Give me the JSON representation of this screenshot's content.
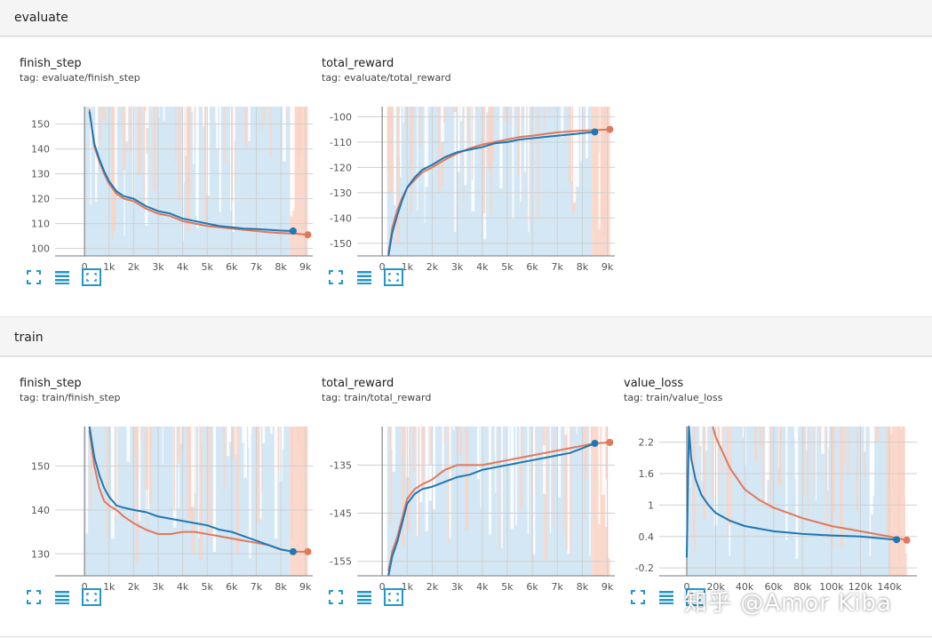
{
  "colors": {
    "blue": "#1f77b4",
    "orange": "#e1785a",
    "blue_band": "#c5dff0",
    "orange_band": "#f9d4c6",
    "grid": "#d0d0d0",
    "tool": "#2196c9"
  },
  "sections": [
    {
      "name": "evaluate"
    },
    {
      "name": "train"
    }
  ],
  "tools": {
    "fit_icon": "fit-domain-icon",
    "data_icon": "data-table-icon",
    "expand_icon": "expand-icon"
  },
  "watermark": "知乎 @Amor Kiba",
  "chart_data": [
    {
      "type": "line",
      "title": "finish_step",
      "tag": "tag: evaluate/finish_step",
      "xlim": [
        -1200,
        9300
      ],
      "ylim": [
        97,
        157
      ],
      "xticks": [
        0,
        1000,
        2000,
        3000,
        4000,
        5000,
        6000,
        7000,
        8000,
        9000
      ],
      "xtick_labels": [
        "0",
        "1k",
        "2k",
        "3k",
        "4k",
        "5k",
        "6k",
        "7k",
        "8k",
        "9k"
      ],
      "yticks": [
        100,
        110,
        120,
        130,
        140,
        150
      ],
      "ytick_labels": [
        "100",
        "110",
        "120",
        "130",
        "140",
        "150"
      ],
      "series": [
        {
          "name": "blue",
          "color": "#1f77b4",
          "x": [
            200,
            400,
            600,
            800,
            1000,
            1300,
            1600,
            2000,
            2500,
            3000,
            3500,
            4000,
            4500,
            5000,
            5500,
            6000,
            6500,
            7000,
            7500,
            8000,
            8500
          ],
          "values": [
            155,
            142,
            136,
            131,
            127,
            123,
            121,
            120,
            117,
            115,
            114,
            112,
            111,
            110,
            109,
            108.5,
            108,
            107.8,
            107.5,
            107.2,
            107
          ]
        },
        {
          "name": "orange",
          "color": "#e1785a",
          "x": [
            200,
            400,
            600,
            800,
            1000,
            1300,
            1600,
            2000,
            2500,
            3000,
            3500,
            4000,
            4500,
            5000,
            5500,
            6000,
            6500,
            7000,
            7500,
            8000,
            8500,
            9100
          ],
          "values": [
            156,
            141,
            135,
            130,
            126,
            122,
            120,
            119,
            116,
            114,
            113,
            111,
            110,
            109,
            108.5,
            108,
            107.5,
            107,
            106.5,
            106.2,
            106,
            105.5
          ]
        }
      ],
      "band_x": [
        0,
        9100
      ]
    },
    {
      "type": "line",
      "title": "total_reward",
      "tag": "tag: evaluate/total_reward",
      "xlim": [
        -1000,
        9300
      ],
      "ylim": [
        -155,
        -96
      ],
      "xticks": [
        0,
        1000,
        2000,
        3000,
        4000,
        5000,
        6000,
        7000,
        8000,
        9000
      ],
      "xtick_labels": [
        "0",
        "1k",
        "2k",
        "3k",
        "4k",
        "5k",
        "6k",
        "7k",
        "8k",
        "9k"
      ],
      "yticks": [
        -150,
        -140,
        -130,
        -120,
        -110,
        -100
      ],
      "ytick_labels": [
        "-150",
        "-140",
        "-130",
        "-120",
        "-110",
        "-100"
      ],
      "series": [
        {
          "name": "blue",
          "color": "#1f77b4",
          "x": [
            250,
            400,
            600,
            800,
            1000,
            1300,
            1600,
            2000,
            2500,
            3000,
            3500,
            4000,
            4500,
            5000,
            5500,
            6000,
            6500,
            7000,
            7500,
            8000,
            8500
          ],
          "values": [
            -155,
            -146,
            -139,
            -133,
            -128,
            -124,
            -121,
            -119,
            -116,
            -114,
            -113,
            -112,
            -110.5,
            -110,
            -109,
            -108.5,
            -108,
            -107.5,
            -107,
            -106.5,
            -106
          ]
        },
        {
          "name": "orange",
          "color": "#e1785a",
          "x": [
            250,
            400,
            600,
            800,
            1000,
            1300,
            1600,
            2000,
            2500,
            3000,
            3500,
            4000,
            4500,
            5000,
            5500,
            6000,
            6500,
            7000,
            7500,
            8000,
            8500,
            9100
          ],
          "values": [
            -154,
            -144,
            -137,
            -132,
            -128,
            -125,
            -122,
            -120,
            -117,
            -114.5,
            -112.5,
            -111,
            -110,
            -109,
            -108,
            -107.5,
            -106.8,
            -106.2,
            -105.8,
            -105.5,
            -105.3,
            -105
          ]
        }
      ],
      "band_x": [
        200,
        9100
      ]
    },
    {
      "type": "line",
      "title": "finish_step",
      "tag": "tag: train/finish_step",
      "xlim": [
        -1200,
        9300
      ],
      "ylim": [
        125,
        159
      ],
      "xticks": [
        0,
        1000,
        2000,
        3000,
        4000,
        5000,
        6000,
        7000,
        8000,
        9000
      ],
      "xtick_labels": [
        "0",
        "1k",
        "2k",
        "3k",
        "4k",
        "5k",
        "6k",
        "7k",
        "8k",
        "9k"
      ],
      "yticks": [
        130,
        140,
        150
      ],
      "ytick_labels": [
        "130",
        "140",
        "150"
      ],
      "series": [
        {
          "name": "blue",
          "color": "#1f77b4",
          "x": [
            200,
            400,
            600,
            800,
            1000,
            1300,
            1600,
            2000,
            2500,
            3000,
            3500,
            4000,
            4500,
            5000,
            5500,
            6000,
            6500,
            7000,
            7500,
            8000,
            8500
          ],
          "values": [
            159,
            152,
            148,
            145,
            143,
            141,
            140.5,
            140,
            139.5,
            138.5,
            138,
            137.5,
            137,
            136.5,
            135.5,
            135,
            134,
            133,
            132,
            131,
            130.5
          ]
        },
        {
          "name": "orange",
          "color": "#e1785a",
          "x": [
            200,
            400,
            600,
            800,
            1000,
            1300,
            1600,
            2000,
            2500,
            3000,
            3500,
            4000,
            4500,
            5000,
            5500,
            6000,
            6500,
            7000,
            7500,
            8000,
            8500,
            9100
          ],
          "values": [
            158,
            150,
            145,
            142,
            141,
            140,
            138.5,
            137,
            135.5,
            134.5,
            134.5,
            135,
            135,
            134.5,
            134,
            133.5,
            133,
            132.5,
            132,
            131,
            130.5,
            130.5
          ]
        }
      ],
      "band_x": [
        0,
        9100
      ]
    },
    {
      "type": "line",
      "title": "total_reward",
      "tag": "tag: train/total_reward",
      "xlim": [
        -1000,
        9300
      ],
      "ylim": [
        -158,
        -127
      ],
      "xticks": [
        0,
        1000,
        2000,
        3000,
        4000,
        5000,
        6000,
        7000,
        8000,
        9000
      ],
      "xtick_labels": [
        "0",
        "1k",
        "2k",
        "3k",
        "4k",
        "5k",
        "6k",
        "7k",
        "8k",
        "9k"
      ],
      "yticks": [
        -155,
        -145,
        -135
      ],
      "ytick_labels": [
        "-155",
        "-145",
        "-135"
      ],
      "series": [
        {
          "name": "blue",
          "color": "#1f77b4",
          "x": [
            250,
            400,
            600,
            800,
            1000,
            1300,
            1600,
            2000,
            2500,
            3000,
            3500,
            4000,
            4500,
            5000,
            5500,
            6000,
            6500,
            7000,
            7500,
            8000,
            8500
          ],
          "values": [
            -158,
            -154,
            -151,
            -147,
            -143,
            -141,
            -140,
            -139.5,
            -138.5,
            -137.5,
            -137,
            -136,
            -135.5,
            -135,
            -134.5,
            -134,
            -133.5,
            -133,
            -132.5,
            -131.5,
            -130.5
          ]
        },
        {
          "name": "orange",
          "color": "#e1785a",
          "x": [
            250,
            400,
            600,
            800,
            1000,
            1300,
            1600,
            2000,
            2500,
            3000,
            3500,
            4000,
            4500,
            5000,
            5500,
            6000,
            6500,
            7000,
            7500,
            8000,
            8500,
            9100
          ],
          "values": [
            -157,
            -153,
            -150,
            -146,
            -142,
            -140,
            -139,
            -138,
            -136,
            -135,
            -135,
            -135,
            -134.5,
            -134,
            -133.5,
            -133,
            -132.5,
            -132,
            -131.5,
            -131,
            -130.5,
            -130.3
          ]
        }
      ],
      "band_x": [
        200,
        9100
      ]
    },
    {
      "type": "line",
      "title": "value_loss",
      "tag": "tag: train/value_loss",
      "xlim": [
        -19000,
        159000
      ],
      "ylim": [
        -0.35,
        2.5
      ],
      "xticks": [
        0,
        20000,
        40000,
        60000,
        80000,
        100000,
        120000,
        140000
      ],
      "xtick_labels": [
        "0",
        "20k",
        "40k",
        "60k",
        "80k",
        "100k",
        "120k",
        "140k"
      ],
      "yticks": [
        -0.2,
        0.4,
        1,
        1.6,
        2.2
      ],
      "ytick_labels": [
        "-0.2",
        "0.4",
        "1",
        "1.6",
        "2.2"
      ],
      "series": [
        {
          "name": "blue",
          "color": "#1f77b4",
          "x": [
            0,
            1500,
            3000,
            6000,
            10000,
            15000,
            20000,
            30000,
            40000,
            60000,
            80000,
            100000,
            120000,
            140000,
            145000
          ],
          "values": [
            0,
            2.5,
            1.9,
            1.5,
            1.2,
            1.0,
            0.85,
            0.7,
            0.6,
            0.5,
            0.45,
            0.42,
            0.4,
            0.35,
            0.34
          ]
        },
        {
          "name": "orange",
          "color": "#e1785a",
          "x": [
            18000,
            20000,
            25000,
            30000,
            40000,
            50000,
            60000,
            80000,
            100000,
            120000,
            140000,
            152000
          ],
          "values": [
            2.5,
            2.3,
            2.0,
            1.7,
            1.3,
            1.1,
            0.95,
            0.75,
            0.6,
            0.5,
            0.4,
            0.33
          ]
        }
      ],
      "band_x": [
        0,
        152000
      ]
    }
  ]
}
